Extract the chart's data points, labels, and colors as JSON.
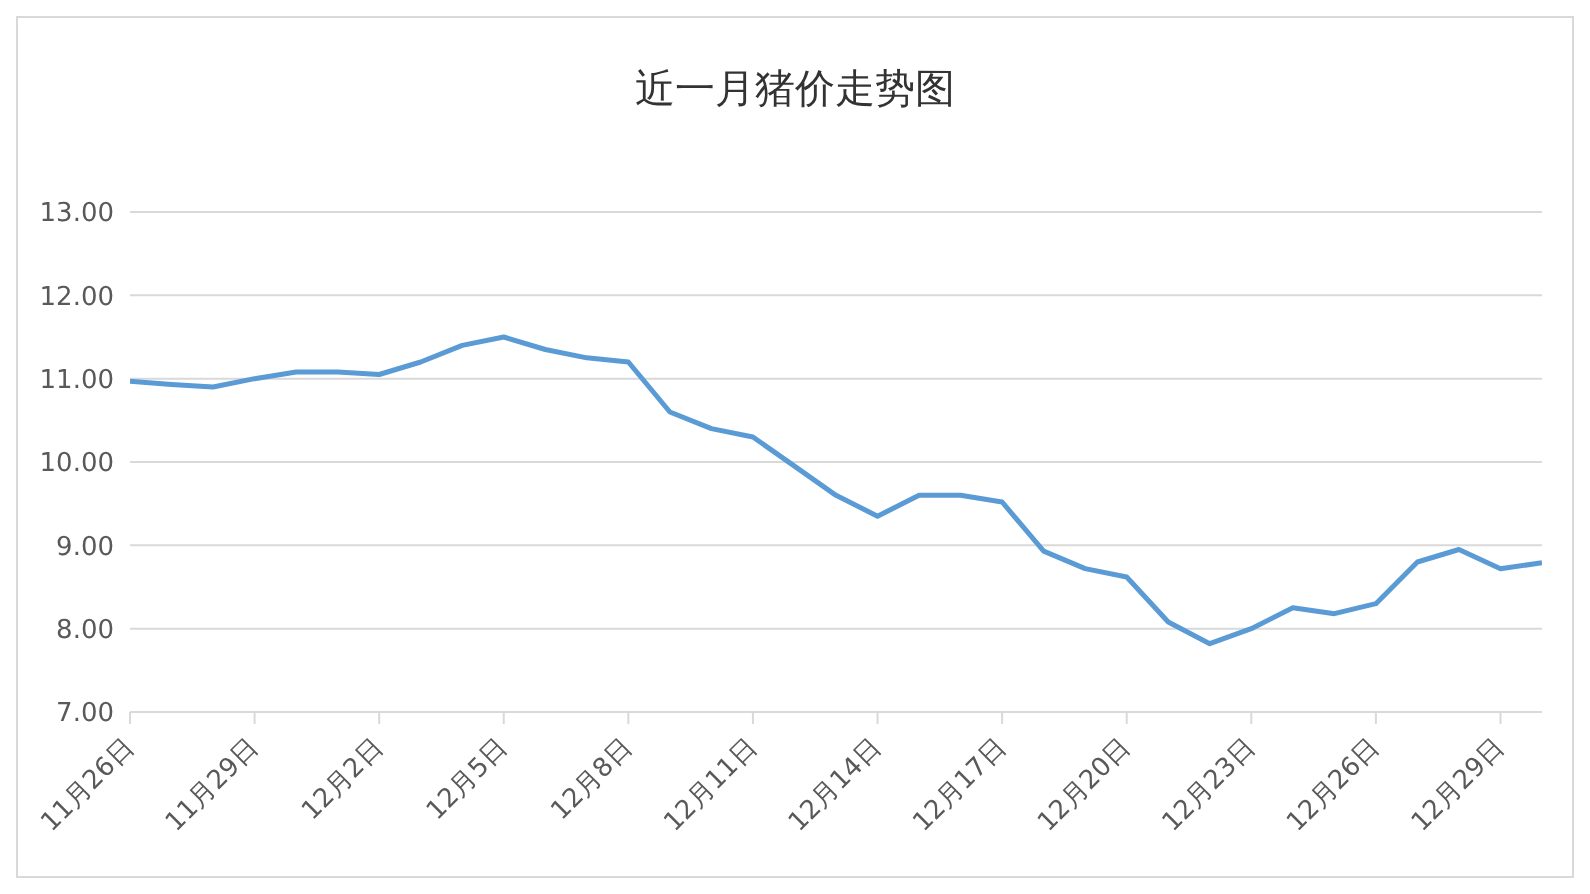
{
  "chart_data": {
    "type": "line",
    "title": "近一月猪价走势图",
    "x": [
      "--11-26",
      "--11-27",
      "--11-28",
      "--11-29",
      "--11-30",
      "--12-01",
      "--12-02",
      "--12-03",
      "--12-04",
      "--12-05",
      "--12-06",
      "--12-07",
      "--12-08",
      "--12-09",
      "--12-10",
      "--12-11",
      "--12-12",
      "--12-13",
      "--12-14",
      "--12-15",
      "--12-16",
      "--12-17",
      "--12-18",
      "--12-19",
      "--12-20",
      "--12-21",
      "--12-22",
      "--12-23",
      "--12-24",
      "--12-25",
      "--12-26",
      "--12-27",
      "--12-28",
      "--12-29",
      "--12-30"
    ],
    "series": [
      {
        "color": "#5b9bd5",
        "values": [
          10.97,
          10.93,
          10.9,
          11.0,
          11.08,
          11.08,
          11.05,
          11.2,
          11.4,
          11.5,
          11.35,
          11.25,
          11.2,
          10.6,
          10.4,
          10.3,
          9.95,
          9.6,
          9.35,
          9.6,
          9.6,
          9.52,
          8.93,
          8.72,
          8.62,
          8.08,
          7.82,
          8.0,
          8.25,
          8.18,
          8.3,
          8.8,
          8.95,
          8.72,
          8.79
        ]
      }
    ],
    "xlim": [
      "--11-26",
      "--12-30"
    ],
    "xticks": [
      {
        "value": "--11-26",
        "label": "11月26日"
      },
      {
        "value": "--11-29",
        "label": "11月29日"
      },
      {
        "value": "--12-02",
        "label": "12月2日"
      },
      {
        "value": "--12-05",
        "label": "12月5日"
      },
      {
        "value": "--12-08",
        "label": "12月8日"
      },
      {
        "value": "--12-11",
        "label": "12月11日"
      },
      {
        "value": "--12-14",
        "label": "12月14日"
      },
      {
        "value": "--12-17",
        "label": "12月17日"
      },
      {
        "value": "--12-20",
        "label": "12月20日"
      },
      {
        "value": "--12-23",
        "label": "12月23日"
      },
      {
        "value": "--12-26",
        "label": "12月26日"
      },
      {
        "value": "--12-29",
        "label": "12月29日"
      }
    ],
    "ylim": [
      7,
      13
    ],
    "yticks": [
      {
        "value": 7,
        "label": "7.00"
      },
      {
        "value": 8,
        "label": "8.00"
      },
      {
        "value": 9,
        "label": "9.00"
      },
      {
        "value": 10,
        "label": "10.00"
      },
      {
        "value": 11,
        "label": "11.00"
      },
      {
        "value": 12,
        "label": "12.00"
      },
      {
        "value": 13,
        "label": "13.00"
      }
    ],
    "grid": "y",
    "marker": "none",
    "line_style": "solid"
  }
}
